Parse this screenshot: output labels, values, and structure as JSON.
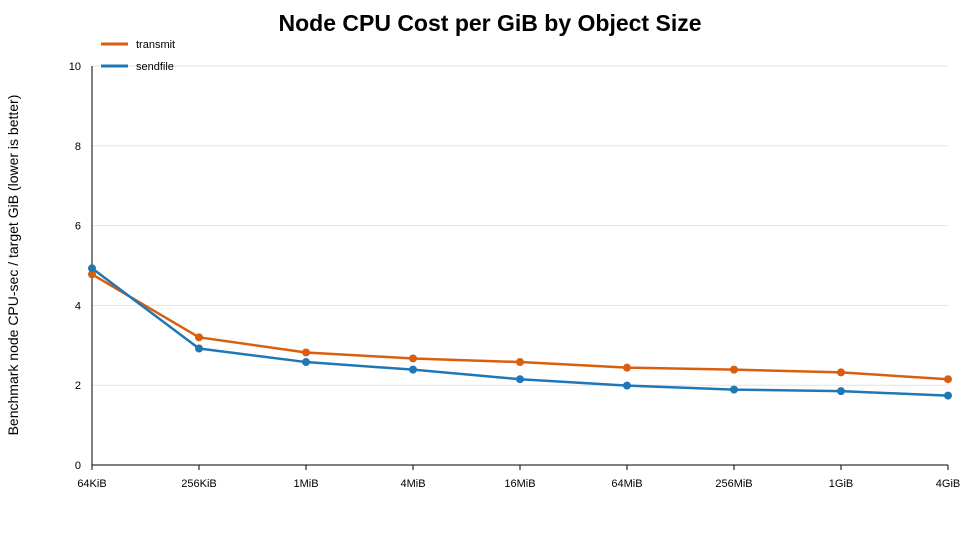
{
  "chart_data": {
    "type": "line",
    "title": "Node CPU Cost per GiB by Object Size",
    "xlabel": "",
    "ylabel": "Benchmark node CPU-sec / target GiB (lower is better)",
    "categories": [
      "64KiB",
      "256KiB",
      "1MiB",
      "4MiB",
      "16MiB",
      "64MiB",
      "256MiB",
      "1GiB",
      "4GiB"
    ],
    "ylim": [
      0,
      10
    ],
    "yticks": [
      0,
      2,
      4,
      6,
      8,
      10
    ],
    "grid": true,
    "legend_position": "top-left",
    "series": [
      {
        "name": "transmit",
        "color": "#d95f0e",
        "values": [
          4.78,
          3.2,
          2.82,
          2.67,
          2.58,
          2.44,
          2.39,
          2.32,
          2.15
        ]
      },
      {
        "name": "sendfile",
        "color": "#1f77b4",
        "values": [
          4.93,
          2.92,
          2.58,
          2.39,
          2.15,
          1.99,
          1.89,
          1.85,
          1.74
        ]
      }
    ]
  }
}
